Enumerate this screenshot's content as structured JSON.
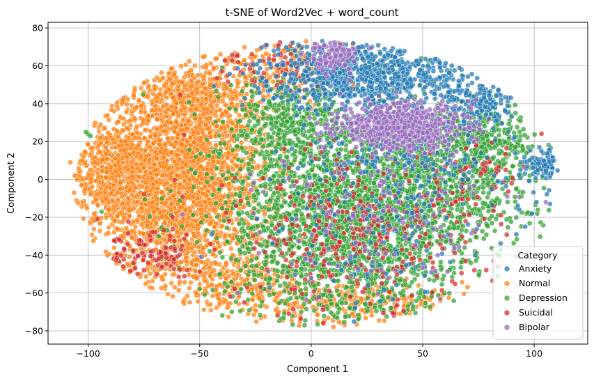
{
  "chart_data": {
    "type": "scatter",
    "title": "t-SNE of Word2Vec + word_count",
    "xlabel": "Component 1",
    "ylabel": "Component 2",
    "xlim": [
      -118,
      124
    ],
    "ylim": [
      -87,
      83
    ],
    "xticks": [
      -100,
      -50,
      0,
      50,
      100
    ],
    "yticks": [
      -80,
      -60,
      -40,
      -20,
      0,
      20,
      40,
      60,
      80
    ],
    "xtick_labels": [
      "−100",
      "−50",
      "0",
      "50",
      "100"
    ],
    "ytick_labels": [
      "−80",
      "−60",
      "−40",
      "−20",
      "0",
      "20",
      "40",
      "60",
      "80"
    ],
    "grid": true,
    "legend": {
      "title": "Category",
      "placement": "lower-right",
      "items": [
        "Anxiety",
        "Normal",
        "Depression",
        "Suicidal",
        "Bipolar"
      ]
    },
    "series": [
      {
        "name": "Anxiety",
        "color": "#1f77b4",
        "clusters": [
          {
            "cx": 25,
            "cy": 55,
            "sx": 22,
            "sy": 9,
            "n": 850
          },
          {
            "cx": 75,
            "cy": 40,
            "sx": 8,
            "sy": 6,
            "n": 160
          },
          {
            "cx": 45,
            "cy": 10,
            "sx": 25,
            "sy": 12,
            "n": 200
          },
          {
            "cx": 104,
            "cy": 8,
            "sx": 4,
            "sy": 4,
            "n": 90
          },
          {
            "cx": 30,
            "cy": -30,
            "sx": 25,
            "sy": 20,
            "n": 120
          }
        ],
        "points": [
          [
            96,
            -25
          ],
          [
            92,
            -29
          ],
          [
            99,
            -18
          ],
          [
            101,
            -12
          ],
          [
            -20,
            71
          ],
          [
            5,
            73
          ]
        ]
      },
      {
        "name": "Normal",
        "color": "#ff7f0e",
        "clusters": [
          {
            "cx": -60,
            "cy": 0,
            "sx": 20,
            "sy": 28,
            "n": 2800
          },
          {
            "cx": -90,
            "cy": 5,
            "sx": 8,
            "sy": 12,
            "n": 300
          },
          {
            "cx": -50,
            "cy": 45,
            "sx": 14,
            "sy": 10,
            "n": 300
          },
          {
            "cx": -10,
            "cy": 55,
            "sx": 14,
            "sy": 10,
            "n": 200
          },
          {
            "cx": 20,
            "cy": -65,
            "sx": 25,
            "sy": 6,
            "n": 250
          },
          {
            "cx": -30,
            "cy": -55,
            "sx": 14,
            "sy": 8,
            "n": 200
          }
        ],
        "points": [
          [
            -108,
            9
          ],
          [
            -105,
            0
          ],
          [
            -103,
            -3
          ],
          [
            -97,
            9
          ],
          [
            -96,
            -8
          ],
          [
            10,
            -78
          ],
          [
            15,
            -77
          ],
          [
            -5,
            -75
          ]
        ]
      },
      {
        "name": "Depression",
        "color": "#2ca02c",
        "clusters": [
          {
            "cx": 15,
            "cy": -20,
            "sx": 28,
            "sy": 30,
            "n": 2300
          },
          {
            "cx": 60,
            "cy": 0,
            "sx": 20,
            "sy": 18,
            "n": 700
          },
          {
            "cx": 80,
            "cy": 20,
            "sx": 10,
            "sy": 8,
            "n": 250
          },
          {
            "cx": -10,
            "cy": 30,
            "sx": 12,
            "sy": 12,
            "n": 300
          }
        ],
        "points": [
          [
            -100,
            24
          ],
          [
            -99,
            23
          ],
          [
            -101,
            25
          ],
          [
            -40,
            59
          ],
          [
            -5,
            67
          ],
          [
            53,
            -53
          ],
          [
            62,
            -48
          ],
          [
            -94,
            -17
          ]
        ]
      },
      {
        "name": "Suicidal",
        "color": "#d62728",
        "clusters": [
          {
            "cx": 20,
            "cy": -30,
            "sx": 30,
            "sy": 22,
            "n": 350
          },
          {
            "cx": -70,
            "cy": -40,
            "sx": 12,
            "sy": 6,
            "n": 90
          },
          {
            "cx": -15,
            "cy": 60,
            "sx": 15,
            "sy": 8,
            "n": 70
          },
          {
            "cx": 75,
            "cy": 0,
            "sx": 10,
            "sy": 10,
            "n": 50
          }
        ],
        "points": [
          [
            -79,
            -47
          ],
          [
            -75,
            -48
          ],
          [
            -67,
            -46
          ],
          [
            -30,
            -65
          ],
          [
            -10,
            -71
          ]
        ]
      },
      {
        "name": "Bipolar",
        "color": "#9467bd",
        "clusters": [
          {
            "cx": 40,
            "cy": 28,
            "sx": 14,
            "sy": 6,
            "n": 700
          },
          {
            "cx": 10,
            "cy": 65,
            "sx": 6,
            "sy": 4,
            "n": 120
          },
          {
            "cx": 30,
            "cy": -20,
            "sx": 25,
            "sy": 20,
            "n": 140
          }
        ],
        "points": [
          [
            70,
            33
          ],
          [
            60,
            33
          ],
          [
            0,
            -52
          ],
          [
            -33,
            -60
          ]
        ]
      }
    ]
  }
}
